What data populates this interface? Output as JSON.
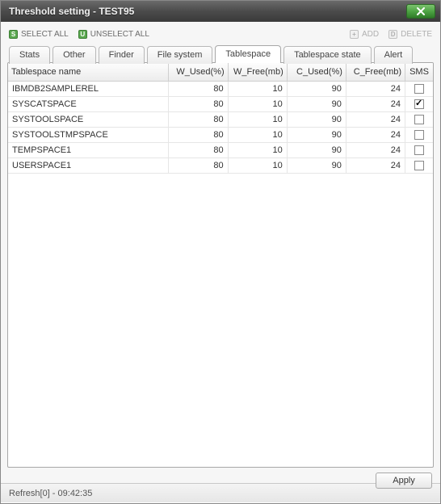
{
  "window": {
    "title": "Threshold setting - TEST95"
  },
  "toolbar": {
    "selectAll": "SELECT ALL",
    "unselectAll": "UNSELECT ALL",
    "add": "ADD",
    "delete": "DELETE"
  },
  "tabs": [
    {
      "label": "Stats",
      "active": false
    },
    {
      "label": "Other",
      "active": false
    },
    {
      "label": "Finder",
      "active": false
    },
    {
      "label": "File system",
      "active": false
    },
    {
      "label": "Tablespace",
      "active": true
    },
    {
      "label": "Tablespace state",
      "active": false
    },
    {
      "label": "Alert",
      "active": false
    }
  ],
  "table": {
    "columns": [
      "Tablespace name",
      "W_Used(%)",
      "W_Free(mb)",
      "C_Used(%)",
      "C_Free(mb)",
      "SMS"
    ],
    "colTypes": [
      "name",
      "num",
      "num",
      "num",
      "num",
      "sms"
    ],
    "rows": [
      {
        "name": "IBMDB2SAMPLEREL",
        "w_used": 80,
        "w_free": 10,
        "c_used": 90,
        "c_free": 24,
        "sms": false
      },
      {
        "name": "SYSCATSPACE",
        "w_used": 80,
        "w_free": 10,
        "c_used": 90,
        "c_free": 24,
        "sms": true
      },
      {
        "name": "SYSTOOLSPACE",
        "w_used": 80,
        "w_free": 10,
        "c_used": 90,
        "c_free": 24,
        "sms": false
      },
      {
        "name": "SYSTOOLSTMPSPACE",
        "w_used": 80,
        "w_free": 10,
        "c_used": 90,
        "c_free": 24,
        "sms": false
      },
      {
        "name": "TEMPSPACE1",
        "w_used": 80,
        "w_free": 10,
        "c_used": 90,
        "c_free": 24,
        "sms": false
      },
      {
        "name": "USERSPACE1",
        "w_used": 80,
        "w_free": 10,
        "c_used": 90,
        "c_free": 24,
        "sms": false
      }
    ]
  },
  "buttons": {
    "apply": "Apply"
  },
  "status": {
    "text": "Refresh[0] - 09:42:35"
  },
  "colors": {
    "titlebarText": "#f0f0f0",
    "closeBtnBg": "#4ea444",
    "selectIconBg": "#5aa84f",
    "panelBorder": "#a8a8a8",
    "gridBorder": "#e6e6e6",
    "headerBg": "#ececec"
  }
}
